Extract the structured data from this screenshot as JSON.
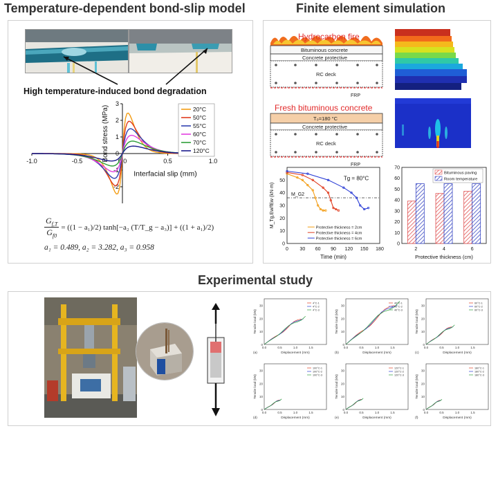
{
  "headings": {
    "bond_slip": "Temperature-dependent bond-slip model",
    "fem": "Finite element simulation",
    "experimental": "Experimental study"
  },
  "bond_slip_panel": {
    "photo_caption": "High temperature-induced bond degradation",
    "formula_lhs_num": "G",
    "formula_lhs_num_sub": "f,T",
    "formula_lhs_den": "G",
    "formula_lhs_den_sub": "f0",
    "formula_rhs": "= ((1 − a₁)/2) tanh[−a₂ (T/T_g − a₃)] + ((1 + a₁)/2)",
    "constants": "a₁ = 0.489, a₂ = 3.282, a₃ = 0.958"
  },
  "fem_panel": {
    "section1": {
      "fire_label": "Hydrocarbon fire",
      "layers": [
        "Bituminous concrete",
        "Concrete protective",
        "RC deck"
      ],
      "frp_label": "FRP"
    },
    "section2": {
      "title": "Fresh bituminous concrete",
      "temp_label": "T₀=180 °C",
      "layers": [
        "Concrete protective",
        "RC deck"
      ],
      "frp_label": "FRP"
    }
  },
  "chart_data": [
    {
      "type": "line",
      "xlabel": "Interfacial slip (mm)",
      "ylabel": "Bond stress (MPa)",
      "xlim": [
        -1.0,
        1.0
      ],
      "ylim": [
        -3,
        3
      ],
      "xticks": [
        "-1.0",
        "-0.5",
        "0.0",
        "0.5",
        "1.0"
      ],
      "yticks": [
        "-2",
        "-1",
        "0",
        "1",
        "2",
        "3"
      ],
      "legend": "top-right",
      "series": [
        {
          "name": "20°C",
          "color": "#f39c12",
          "peak": 2.45
        },
        {
          "name": "50°C",
          "color": "#e03c1f",
          "peak": 1.95
        },
        {
          "name": "55°C",
          "color": "#3040b0",
          "peak": 1.5
        },
        {
          "name": "60°C",
          "color": "#e23fe0",
          "peak": 1.1
        },
        {
          "name": "70°C",
          "color": "#2e9e3a",
          "peak": 0.75
        },
        {
          "name": "120°C",
          "color": "#1a1a8c",
          "peak": 0.45
        }
      ]
    },
    {
      "type": "line",
      "xlabel": "Time (min)",
      "ylabel": "M_Tg,Ew/fEw (kN·m)",
      "xlim": [
        0,
        180
      ],
      "ylim": [
        0,
        60
      ],
      "xticks": [
        "0",
        "30",
        "60",
        "90",
        "120",
        "150",
        "180"
      ],
      "yticks": [
        "0",
        "10",
        "20",
        "30",
        "40",
        "50"
      ],
      "annotations": [
        "Tg = 80°C",
        "M_G2"
      ],
      "reference_line": 36,
      "series": [
        {
          "name": "Protective thickness = 2cm",
          "color": "#f39c12",
          "x": [
            0,
            20,
            30,
            40,
            50,
            55,
            60,
            65,
            70,
            75
          ],
          "y": [
            55,
            52,
            50,
            46,
            42,
            36,
            30,
            27,
            26,
            26
          ]
        },
        {
          "name": "Protective thickness = 4cm",
          "color": "#e03c1f",
          "x": [
            0,
            30,
            50,
            70,
            80,
            85,
            90,
            95,
            100
          ],
          "y": [
            56,
            54,
            50,
            44,
            40,
            34,
            28,
            27,
            26
          ]
        },
        {
          "name": "Protective thickness = 6cm",
          "color": "#2d3fd6",
          "x": [
            0,
            40,
            80,
            110,
            125,
            135,
            142,
            150,
            158
          ],
          "y": [
            57,
            55,
            50,
            44,
            40,
            36,
            30,
            27,
            28
          ]
        }
      ]
    },
    {
      "type": "bar",
      "xlabel": "Protective thickness (cm)",
      "categories": [
        "2",
        "4",
        "6"
      ],
      "ylim": [
        0,
        70
      ],
      "yticks": [
        "0",
        "10",
        "20",
        "30",
        "40",
        "50",
        "60",
        "70"
      ],
      "legend": "top-right",
      "series": [
        {
          "name": "Bituminous paving",
          "color": "#e05252",
          "values": [
            39,
            46,
            48
          ]
        },
        {
          "name": "Room temperature",
          "color": "#3b4ac4",
          "values": [
            55,
            55,
            55
          ]
        }
      ]
    }
  ],
  "exp_charts": {
    "xlabel": "Displacement (mm)",
    "ylabel": "Tensile load (kN)",
    "panels": [
      {
        "tag": "(a)",
        "legend": [
          "4°C-1",
          "4°C-2",
          "4°C-3"
        ]
      },
      {
        "tag": "(b)",
        "legend": [
          "40°C-1",
          "40°C-2",
          "40°C-3"
        ]
      },
      {
        "tag": "(c)",
        "legend": [
          "60°C-1",
          "60°C-2",
          "60°C-3"
        ]
      },
      {
        "tag": "(d)",
        "legend": [
          "100°C-1",
          "100°C-2",
          "100°C-3"
        ]
      },
      {
        "tag": "(e)",
        "legend": [
          "120°C-1",
          "120°C-2",
          "120°C-3"
        ]
      },
      {
        "tag": "(f)",
        "legend": [
          "180°C-1",
          "180°C-2",
          "180°C-3"
        ]
      }
    ]
  }
}
